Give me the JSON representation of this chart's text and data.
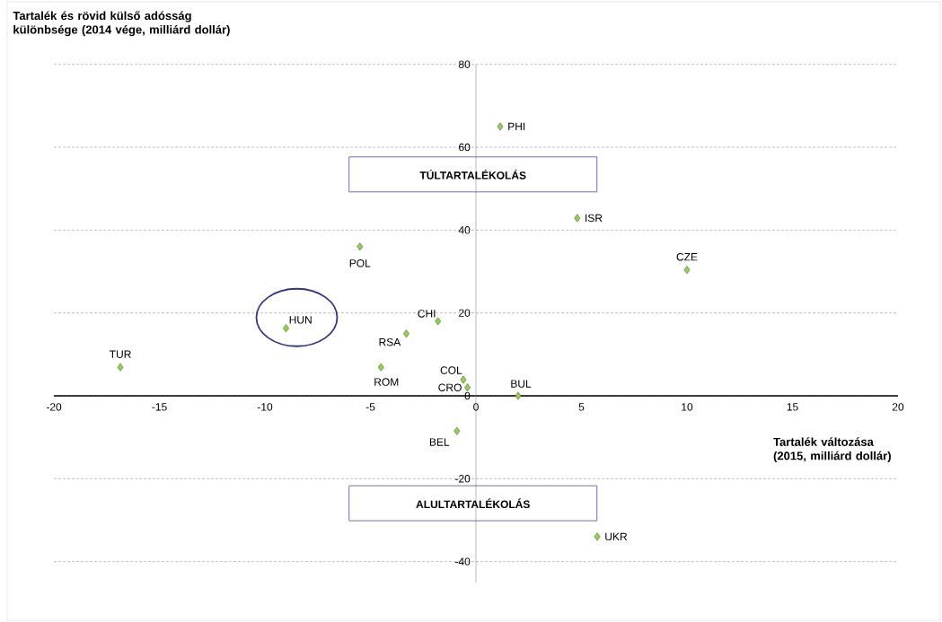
{
  "chart_data": {
    "type": "scatter",
    "xlabel": "Tartalék változása (2015, milliárd dollár)",
    "ylabel": "Tartalék és rövid külső adósság különbsége (2014 vége, milliárd dollár)",
    "x": [
      1.15,
      4.8,
      10.0,
      -5.5,
      -9.0,
      -1.8,
      -3.3,
      -16.85,
      -4.5,
      -0.6,
      -0.4,
      2.0,
      -0.9,
      5.75
    ],
    "series": [
      {
        "color": "#92d050",
        "values": [
          65.0,
          42.9,
          30.4,
          36.0,
          16.3,
          18.0,
          15.0,
          6.9,
          6.9,
          3.9,
          2.0,
          0.0,
          -8.5,
          -34.0
        ]
      }
    ],
    "xlim": [
      -20,
      20
    ],
    "ylim": [
      -45,
      80
    ],
    "xticks": [
      -20,
      -15,
      -10,
      -5,
      0,
      5,
      10,
      15,
      20
    ],
    "yticks": [
      -40,
      -20,
      0,
      20,
      40,
      60,
      80
    ],
    "grid": "y",
    "marker": "diamond",
    "annotations": [
      "TÚLTARTALÉKOLÁS",
      "ALULTARTALÉKOLÁS",
      {
        "text": "PHI",
        "x": 1.15,
        "y": 65.0
      },
      {
        "text": "ISR",
        "x": 4.8,
        "y": 42.9
      },
      {
        "text": "CZE",
        "x": 10.0,
        "y": 30.4
      },
      {
        "text": "POL",
        "x": -5.5,
        "y": 36.0
      },
      {
        "text": "HUN",
        "x": -9.0,
        "y": 16.3
      },
      {
        "text": "CHI",
        "x": -1.8,
        "y": 18.0
      },
      {
        "text": "RSA",
        "x": -3.3,
        "y": 15.0
      },
      {
        "text": "TUR",
        "x": -16.85,
        "y": 6.9
      },
      {
        "text": "ROM",
        "x": -4.5,
        "y": 6.9
      },
      {
        "text": "COL",
        "x": -0.6,
        "y": 3.9
      },
      {
        "text": "CRO",
        "x": -0.4,
        "y": 2.0
      },
      {
        "text": "BUL",
        "x": 2.0,
        "y": 0.0
      },
      {
        "text": "BEL",
        "x": -0.9,
        "y": -8.5
      },
      {
        "text": "UKR",
        "x": 5.75,
        "y": -34.0
      }
    ]
  }
}
